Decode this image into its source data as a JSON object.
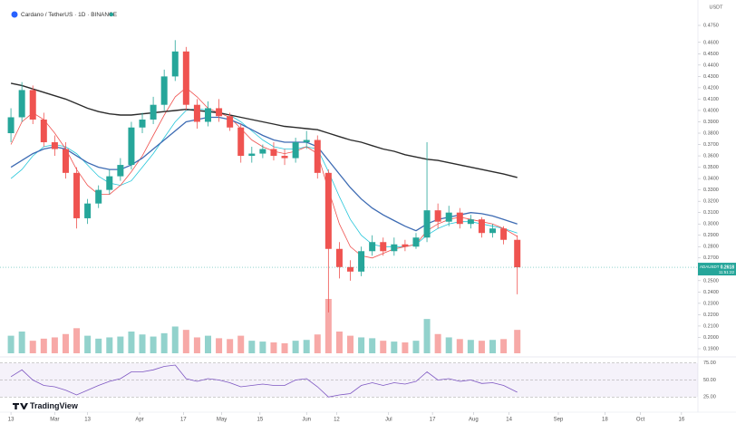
{
  "chart_data": {
    "type": "candlestick",
    "title": "Cardano / TetherUS · 1D · BINANCE",
    "price_unit": "USDT",
    "symbol": "ADAUSDT",
    "countdown": "11:51:22",
    "brand": "TradingView",
    "up_color": "#26a69a",
    "down_color": "#ef5350",
    "x": [
      "02-13",
      "02-17",
      "02-21",
      "02-25",
      "03-01",
      "03-05",
      "03-09",
      "03-13",
      "03-17",
      "03-21",
      "03-25",
      "03-29",
      "04-02",
      "04-06",
      "04-10",
      "04-14",
      "04-18",
      "04-22",
      "04-26",
      "04-30",
      "05-04",
      "05-08",
      "05-12",
      "05-16",
      "05-20",
      "05-24",
      "05-28",
      "06-01",
      "06-05",
      "06-09",
      "06-13",
      "06-17",
      "06-21",
      "06-25",
      "06-29",
      "07-03",
      "07-07",
      "07-11",
      "07-15",
      "07-19",
      "07-23",
      "07-27",
      "07-31",
      "08-04",
      "08-08",
      "08-12",
      "08-17"
    ],
    "open": [
      0.38,
      0.394,
      0.418,
      0.392,
      0.372,
      0.366,
      0.345,
      0.305,
      0.318,
      0.33,
      0.342,
      0.352,
      0.385,
      0.392,
      0.405,
      0.43,
      0.452,
      0.405,
      0.39,
      0.402,
      0.395,
      0.385,
      0.36,
      0.362,
      0.366,
      0.36,
      0.358,
      0.372,
      0.374,
      0.345,
      0.278,
      0.262,
      0.258,
      0.276,
      0.284,
      0.276,
      0.282,
      0.28,
      0.288,
      0.312,
      0.302,
      0.31,
      0.3,
      0.304,
      0.292,
      0.296,
      0.286
    ],
    "high": [
      0.402,
      0.425,
      0.422,
      0.398,
      0.378,
      0.372,
      0.35,
      0.322,
      0.334,
      0.348,
      0.358,
      0.39,
      0.398,
      0.412,
      0.436,
      0.462,
      0.456,
      0.41,
      0.408,
      0.41,
      0.398,
      0.388,
      0.368,
      0.37,
      0.372,
      0.366,
      0.376,
      0.382,
      0.378,
      0.348,
      0.284,
      0.268,
      0.28,
      0.29,
      0.288,
      0.288,
      0.286,
      0.292,
      0.372,
      0.318,
      0.316,
      0.314,
      0.308,
      0.306,
      0.3,
      0.298,
      0.29
    ],
    "low": [
      0.372,
      0.39,
      0.388,
      0.368,
      0.36,
      0.34,
      0.296,
      0.3,
      0.314,
      0.326,
      0.338,
      0.348,
      0.38,
      0.388,
      0.4,
      0.426,
      0.4,
      0.384,
      0.386,
      0.39,
      0.382,
      0.354,
      0.354,
      0.358,
      0.356,
      0.352,
      0.354,
      0.366,
      0.34,
      0.222,
      0.252,
      0.25,
      0.254,
      0.272,
      0.272,
      0.272,
      0.276,
      0.278,
      0.284,
      0.296,
      0.298,
      0.296,
      0.296,
      0.288,
      0.288,
      0.282,
      0.238
    ],
    "close": [
      0.394,
      0.418,
      0.392,
      0.372,
      0.366,
      0.345,
      0.305,
      0.318,
      0.33,
      0.342,
      0.352,
      0.385,
      0.392,
      0.405,
      0.43,
      0.452,
      0.405,
      0.39,
      0.402,
      0.395,
      0.385,
      0.36,
      0.362,
      0.366,
      0.36,
      0.358,
      0.372,
      0.374,
      0.345,
      0.278,
      0.262,
      0.258,
      0.276,
      0.284,
      0.276,
      0.282,
      0.28,
      0.288,
      0.312,
      0.302,
      0.31,
      0.3,
      0.304,
      0.292,
      0.296,
      0.286,
      0.2618
    ],
    "volume": [
      420,
      520,
      300,
      350,
      380,
      460,
      600,
      420,
      350,
      380,
      400,
      520,
      450,
      400,
      480,
      640,
      560,
      380,
      420,
      360,
      340,
      420,
      300,
      280,
      260,
      240,
      300,
      320,
      450,
      1300,
      520,
      420,
      380,
      360,
      300,
      280,
      260,
      300,
      820,
      460,
      380,
      340,
      320,
      300,
      320,
      340,
      560
    ],
    "overlays": [
      {
        "color": "#26c6da",
        "values": [
          0.34,
          0.348,
          0.36,
          0.368,
          0.37,
          0.368,
          0.362,
          0.352,
          0.342,
          0.336,
          0.334,
          0.338,
          0.35,
          0.362,
          0.376,
          0.39,
          0.4,
          0.402,
          0.4,
          0.398,
          0.396,
          0.39,
          0.382,
          0.374,
          0.368,
          0.366,
          0.366,
          0.368,
          0.366,
          0.346,
          0.324,
          0.304,
          0.29,
          0.282,
          0.28,
          0.28,
          0.28,
          0.282,
          0.29,
          0.296,
          0.3,
          0.302,
          0.302,
          0.3,
          0.298,
          0.296,
          0.292
        ]
      },
      {
        "color": "#ef5350",
        "values": [
          0.37,
          0.39,
          0.398,
          0.392,
          0.38,
          0.366,
          0.348,
          0.334,
          0.326,
          0.326,
          0.334,
          0.346,
          0.36,
          0.378,
          0.396,
          0.412,
          0.42,
          0.412,
          0.402,
          0.398,
          0.394,
          0.384,
          0.374,
          0.368,
          0.364,
          0.362,
          0.364,
          0.368,
          0.362,
          0.33,
          0.3,
          0.28,
          0.272,
          0.27,
          0.274,
          0.278,
          0.28,
          0.282,
          0.294,
          0.3,
          0.304,
          0.306,
          0.304,
          0.302,
          0.3,
          0.296,
          0.289
        ]
      },
      {
        "color": "#3d6bb3",
        "values": [
          0.35,
          0.356,
          0.362,
          0.366,
          0.368,
          0.366,
          0.36,
          0.354,
          0.35,
          0.348,
          0.348,
          0.352,
          0.358,
          0.366,
          0.374,
          0.382,
          0.39,
          0.392,
          0.394,
          0.394,
          0.392,
          0.388,
          0.383,
          0.378,
          0.374,
          0.372,
          0.372,
          0.372,
          0.368,
          0.356,
          0.344,
          0.332,
          0.322,
          0.314,
          0.308,
          0.303,
          0.298,
          0.294,
          0.3,
          0.304,
          0.306,
          0.308,
          0.31,
          0.309,
          0.307,
          0.304,
          0.3
        ]
      },
      {
        "color": "#2b2b2b",
        "values": [
          0.424,
          0.422,
          0.419,
          0.416,
          0.413,
          0.41,
          0.406,
          0.402,
          0.399,
          0.397,
          0.396,
          0.396,
          0.397,
          0.398,
          0.399,
          0.4,
          0.401,
          0.4,
          0.399,
          0.398,
          0.396,
          0.394,
          0.392,
          0.39,
          0.388,
          0.386,
          0.385,
          0.384,
          0.383,
          0.38,
          0.377,
          0.374,
          0.372,
          0.369,
          0.366,
          0.364,
          0.361,
          0.359,
          0.357,
          0.356,
          0.354,
          0.352,
          0.35,
          0.348,
          0.346,
          0.344,
          0.341
        ]
      }
    ],
    "rsi": {
      "color": "#7e57c2",
      "values": [
        55,
        65,
        50,
        42,
        40,
        35,
        28,
        35,
        42,
        48,
        52,
        62,
        62,
        65,
        70,
        72,
        52,
        48,
        52,
        50,
        46,
        40,
        42,
        44,
        42,
        42,
        50,
        52,
        40,
        25,
        28,
        30,
        42,
        46,
        42,
        46,
        44,
        48,
        62,
        50,
        52,
        48,
        50,
        45,
        46,
        42,
        32
      ],
      "ylim": [
        20,
        80
      ],
      "yticks": [
        {
          "value": 75,
          "label": "75.00"
        },
        {
          "value": 50,
          "label": "50.00"
        },
        {
          "value": 25,
          "label": "25.00"
        }
      ]
    },
    "xlim": [
      "02-09",
      "10-22"
    ],
    "xticks": [
      {
        "value": "02-13",
        "label": "13"
      },
      {
        "value": "03-01",
        "label": "Mar"
      },
      {
        "value": "03-13",
        "label": "13"
      },
      {
        "value": "04-01",
        "label": "Apr"
      },
      {
        "value": "04-17",
        "label": "17"
      },
      {
        "value": "05-01",
        "label": "May"
      },
      {
        "value": "05-15",
        "label": "15"
      },
      {
        "value": "06-01",
        "label": "Jun"
      },
      {
        "value": "06-12",
        "label": "12"
      },
      {
        "value": "07-01",
        "label": "Jul"
      },
      {
        "value": "07-17",
        "label": "17"
      },
      {
        "value": "08-01",
        "label": "Aug"
      },
      {
        "value": "08-14",
        "label": "14"
      },
      {
        "value": "09-01",
        "label": "Sep"
      },
      {
        "value": "09-18",
        "label": "18"
      },
      {
        "value": "10-01",
        "label": "Oct"
      },
      {
        "value": "10-16",
        "label": "16"
      }
    ],
    "ylim": [
      0.186,
      0.4814
    ],
    "yticks": [
      {
        "value": 0.19,
        "label": "0.1900"
      },
      {
        "value": 0.2,
        "label": "0.2000"
      },
      {
        "value": 0.21,
        "label": "0.2100"
      },
      {
        "value": 0.22,
        "label": "0.2200"
      },
      {
        "value": 0.23,
        "label": "0.2300"
      },
      {
        "value": 0.24,
        "label": "0.2400"
      },
      {
        "value": 0.25,
        "label": "0.2500"
      },
      {
        "value": 0.26,
        "label": "0.2600"
      },
      {
        "value": 0.27,
        "label": "0.2700"
      },
      {
        "value": 0.28,
        "label": "0.2800"
      },
      {
        "value": 0.29,
        "label": "0.2900"
      },
      {
        "value": 0.3,
        "label": "0.3000"
      },
      {
        "value": 0.31,
        "label": "0.3100"
      },
      {
        "value": 0.32,
        "label": "0.3200"
      },
      {
        "value": 0.33,
        "label": "0.3300"
      },
      {
        "value": 0.34,
        "label": "0.3400"
      },
      {
        "value": 0.35,
        "label": "0.3500"
      },
      {
        "value": 0.36,
        "label": "0.3600"
      },
      {
        "value": 0.37,
        "label": "0.3700"
      },
      {
        "value": 0.38,
        "label": "0.3800"
      },
      {
        "value": 0.39,
        "label": "0.3900"
      },
      {
        "value": 0.4,
        "label": "0.4000"
      },
      {
        "value": 0.41,
        "label": "0.4100"
      },
      {
        "value": 0.42,
        "label": "0.4200"
      },
      {
        "value": 0.43,
        "label": "0.4300"
      },
      {
        "value": 0.44,
        "label": "0.4400"
      },
      {
        "value": 0.45,
        "label": "0.4500"
      },
      {
        "value": 0.46,
        "label": "0.4600"
      },
      {
        "value": 0.475,
        "label": "0.4750"
      }
    ],
    "grid": false
  }
}
